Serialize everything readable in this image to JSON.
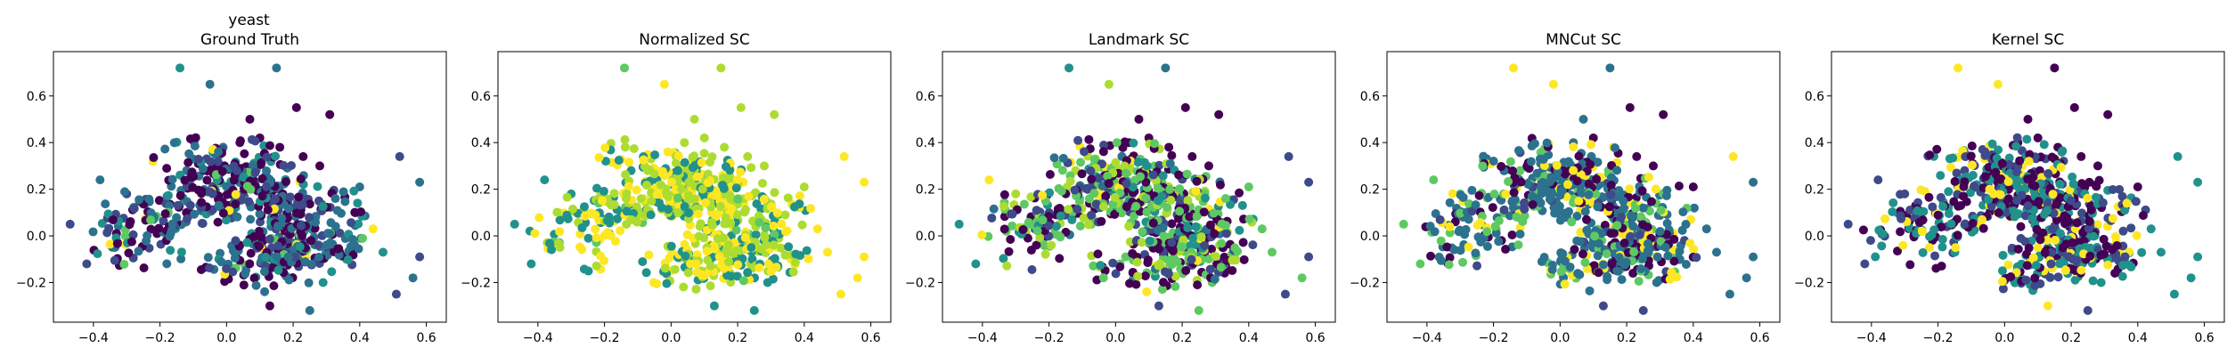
{
  "figure": {
    "dataset_name": "yeast"
  },
  "colors": {
    "viridis": [
      "#440154",
      "#3b528b",
      "#21918c",
      "#5ec962",
      "#fde725"
    ],
    "cluster_order": [
      "#440154",
      "#3e4a89",
      "#2c728e",
      "#21918c",
      "#27ad81",
      "#5ec962",
      "#addc30",
      "#fde725"
    ]
  },
  "chart_data": [
    {
      "type": "scatter",
      "title": "Ground Truth",
      "xlim": [
        -0.52,
        0.66
      ],
      "ylim": [
        -0.37,
        0.79
      ],
      "xticks": [
        -0.4,
        -0.2,
        0.0,
        0.2,
        0.4,
        0.6
      ],
      "yticks": [
        -0.2,
        0.0,
        0.2,
        0.4,
        0.6
      ],
      "xtick_labels": [
        "−0.4",
        "−0.2",
        "0.0",
        "0.2",
        "0.4",
        "0.6"
      ],
      "ytick_labels": [
        "−0.2",
        "0.0",
        "0.2",
        "0.4",
        "0.6"
      ],
      "grid": false,
      "legend": "none",
      "points": [
        {
          "x": -0.14,
          "y": 0.72,
          "c": 3
        },
        {
          "x": -0.05,
          "y": 0.65,
          "c": 2
        },
        {
          "x": 0.15,
          "y": 0.72,
          "c": 2
        },
        {
          "x": 0.07,
          "y": 0.5,
          "c": 0
        },
        {
          "x": 0.21,
          "y": 0.55,
          "c": 0
        },
        {
          "x": 0.31,
          "y": 0.52,
          "c": 0
        },
        {
          "x": 0.52,
          "y": 0.34,
          "c": 1
        },
        {
          "x": 0.58,
          "y": 0.23,
          "c": 2
        },
        {
          "x": -0.47,
          "y": 0.05,
          "c": 1
        },
        {
          "x": 0.51,
          "y": -0.25,
          "c": 1
        },
        {
          "x": 0.56,
          "y": -0.18,
          "c": 2
        },
        {
          "x": 0.25,
          "y": -0.32,
          "c": 2
        },
        {
          "x": 0.13,
          "y": -0.3,
          "c": 0
        },
        {
          "x": 0.44,
          "y": 0.03,
          "c": 7
        },
        {
          "x": 0.58,
          "y": -0.09,
          "c": 1
        },
        {
          "x": 0.4,
          "y": 0.21,
          "c": 2
        },
        {
          "x": 0.04,
          "y": 0.4,
          "c": 0
        },
        {
          "x": 0.1,
          "y": 0.42,
          "c": 0
        },
        {
          "x": 0.16,
          "y": 0.38,
          "c": 0
        },
        {
          "x": 0.23,
          "y": 0.34,
          "c": 0
        },
        {
          "x": 0.28,
          "y": 0.3,
          "c": 0
        },
        {
          "x": -0.06,
          "y": 0.33,
          "c": 1
        },
        {
          "x": -0.12,
          "y": 0.28,
          "c": 2
        },
        {
          "x": 0.32,
          "y": -0.05,
          "c": 5
        },
        {
          "x": 0.29,
          "y": -0.2,
          "c": 3
        },
        {
          "x": -0.42,
          "y": -0.12,
          "c": 1
        },
        {
          "x": -0.38,
          "y": 0.24,
          "c": 2
        },
        {
          "x": 0.36,
          "y": -0.1,
          "c": 3
        },
        {
          "x": 0.47,
          "y": -0.07,
          "c": 3
        },
        {
          "x": -0.3,
          "y": 0.18,
          "c": 1
        }
      ]
    },
    {
      "type": "scatter",
      "title": "Normalized SC",
      "xlim": [
        -0.52,
        0.66
      ],
      "ylim": [
        -0.37,
        0.79
      ],
      "xticks": [
        -0.4,
        -0.2,
        0.0,
        0.2,
        0.4,
        0.6
      ],
      "yticks": [
        -0.2,
        0.0,
        0.2,
        0.4,
        0.6
      ],
      "xtick_labels": [
        "−0.4",
        "−0.2",
        "0.0",
        "0.2",
        "0.4",
        "0.6"
      ],
      "ytick_labels": [
        "−0.2",
        "0.0",
        "0.2",
        "0.4",
        "0.6"
      ],
      "grid": false,
      "legend": "none",
      "points": [
        {
          "x": -0.14,
          "y": 0.72,
          "c": 5
        },
        {
          "x": -0.02,
          "y": 0.65,
          "c": 7
        },
        {
          "x": 0.15,
          "y": 0.72,
          "c": 6
        },
        {
          "x": 0.07,
          "y": 0.5,
          "c": 6
        },
        {
          "x": 0.21,
          "y": 0.55,
          "c": 6
        },
        {
          "x": 0.31,
          "y": 0.52,
          "c": 6
        },
        {
          "x": 0.52,
          "y": 0.34,
          "c": 7
        },
        {
          "x": 0.58,
          "y": 0.23,
          "c": 7
        },
        {
          "x": -0.47,
          "y": 0.05,
          "c": 3
        },
        {
          "x": 0.51,
          "y": -0.25,
          "c": 7
        },
        {
          "x": 0.56,
          "y": -0.18,
          "c": 7
        },
        {
          "x": 0.25,
          "y": -0.32,
          "c": 3
        },
        {
          "x": 0.13,
          "y": -0.3,
          "c": 3
        },
        {
          "x": 0.44,
          "y": 0.03,
          "c": 7
        },
        {
          "x": 0.58,
          "y": -0.09,
          "c": 7
        },
        {
          "x": 0.4,
          "y": 0.21,
          "c": 6
        },
        {
          "x": 0.04,
          "y": 0.4,
          "c": 6
        },
        {
          "x": 0.1,
          "y": 0.42,
          "c": 6
        },
        {
          "x": 0.16,
          "y": 0.38,
          "c": 6
        },
        {
          "x": 0.23,
          "y": 0.34,
          "c": 6
        },
        {
          "x": 0.28,
          "y": 0.3,
          "c": 6
        },
        {
          "x": -0.06,
          "y": 0.33,
          "c": 6
        },
        {
          "x": -0.12,
          "y": 0.28,
          "c": 3
        },
        {
          "x": 0.32,
          "y": -0.05,
          "c": 7
        },
        {
          "x": 0.29,
          "y": -0.2,
          "c": 3
        },
        {
          "x": -0.42,
          "y": -0.12,
          "c": 3
        },
        {
          "x": -0.38,
          "y": 0.24,
          "c": 3
        },
        {
          "x": 0.36,
          "y": -0.1,
          "c": 7
        },
        {
          "x": 0.47,
          "y": -0.07,
          "c": 7
        },
        {
          "x": -0.3,
          "y": 0.18,
          "c": 3
        }
      ]
    },
    {
      "type": "scatter",
      "title": "Landmark SC",
      "xlim": [
        -0.52,
        0.66
      ],
      "ylim": [
        -0.37,
        0.79
      ],
      "xticks": [
        -0.4,
        -0.2,
        0.0,
        0.2,
        0.4,
        0.6
      ],
      "yticks": [
        -0.2,
        0.0,
        0.2,
        0.4,
        0.6
      ],
      "xtick_labels": [
        "−0.4",
        "−0.2",
        "0.0",
        "0.2",
        "0.4",
        "0.6"
      ],
      "ytick_labels": [
        "−0.2",
        "0.0",
        "0.2",
        "0.4",
        "0.6"
      ],
      "grid": false,
      "legend": "none",
      "points": [
        {
          "x": -0.14,
          "y": 0.72,
          "c": 3
        },
        {
          "x": -0.02,
          "y": 0.65,
          "c": 6
        },
        {
          "x": 0.15,
          "y": 0.72,
          "c": 2
        },
        {
          "x": 0.07,
          "y": 0.5,
          "c": 0
        },
        {
          "x": 0.21,
          "y": 0.55,
          "c": 0
        },
        {
          "x": 0.31,
          "y": 0.52,
          "c": 0
        },
        {
          "x": 0.52,
          "y": 0.34,
          "c": 1
        },
        {
          "x": 0.58,
          "y": 0.23,
          "c": 1
        },
        {
          "x": -0.47,
          "y": 0.05,
          "c": 3
        },
        {
          "x": 0.51,
          "y": -0.25,
          "c": 1
        },
        {
          "x": 0.56,
          "y": -0.18,
          "c": 5
        },
        {
          "x": 0.25,
          "y": -0.32,
          "c": 5
        },
        {
          "x": 0.13,
          "y": -0.3,
          "c": 1
        },
        {
          "x": 0.44,
          "y": 0.03,
          "c": 5
        },
        {
          "x": 0.58,
          "y": -0.09,
          "c": 1
        },
        {
          "x": 0.4,
          "y": 0.21,
          "c": 5
        },
        {
          "x": 0.04,
          "y": 0.4,
          "c": 0
        },
        {
          "x": 0.1,
          "y": 0.42,
          "c": 0
        },
        {
          "x": 0.16,
          "y": 0.38,
          "c": 0
        },
        {
          "x": 0.23,
          "y": 0.34,
          "c": 0
        },
        {
          "x": 0.28,
          "y": 0.3,
          "c": 0
        },
        {
          "x": -0.06,
          "y": 0.33,
          "c": 6
        },
        {
          "x": -0.12,
          "y": 0.28,
          "c": 6
        },
        {
          "x": 0.32,
          "y": -0.05,
          "c": 5
        },
        {
          "x": 0.29,
          "y": -0.2,
          "c": 5
        },
        {
          "x": -0.42,
          "y": -0.12,
          "c": 3
        },
        {
          "x": -0.38,
          "y": 0.24,
          "c": 7
        },
        {
          "x": 0.36,
          "y": -0.1,
          "c": 5
        },
        {
          "x": 0.47,
          "y": -0.07,
          "c": 5
        },
        {
          "x": -0.3,
          "y": 0.18,
          "c": 6
        }
      ]
    },
    {
      "type": "scatter",
      "title": "MNCut SC",
      "xlim": [
        -0.52,
        0.66
      ],
      "ylim": [
        -0.37,
        0.79
      ],
      "xticks": [
        -0.4,
        -0.2,
        0.0,
        0.2,
        0.4,
        0.6
      ],
      "yticks": [
        -0.2,
        0.0,
        0.2,
        0.4,
        0.6
      ],
      "xtick_labels": [
        "−0.4",
        "−0.2",
        "0.0",
        "0.2",
        "0.4",
        "0.6"
      ],
      "ytick_labels": [
        "−0.2",
        "0.0",
        "0.2",
        "0.4",
        "0.6"
      ],
      "grid": false,
      "legend": "none",
      "points": [
        {
          "x": -0.14,
          "y": 0.72,
          "c": 7
        },
        {
          "x": -0.02,
          "y": 0.65,
          "c": 7
        },
        {
          "x": 0.15,
          "y": 0.72,
          "c": 2
        },
        {
          "x": 0.07,
          "y": 0.5,
          "c": 2
        },
        {
          "x": 0.21,
          "y": 0.55,
          "c": 0
        },
        {
          "x": 0.31,
          "y": 0.52,
          "c": 0
        },
        {
          "x": 0.52,
          "y": 0.34,
          "c": 7
        },
        {
          "x": 0.58,
          "y": 0.23,
          "c": 2
        },
        {
          "x": -0.47,
          "y": 0.05,
          "c": 5
        },
        {
          "x": 0.51,
          "y": -0.25,
          "c": 2
        },
        {
          "x": 0.56,
          "y": -0.18,
          "c": 2
        },
        {
          "x": 0.25,
          "y": -0.32,
          "c": 1
        },
        {
          "x": 0.13,
          "y": -0.3,
          "c": 1
        },
        {
          "x": 0.44,
          "y": 0.03,
          "c": 2
        },
        {
          "x": 0.58,
          "y": -0.09,
          "c": 2
        },
        {
          "x": 0.4,
          "y": 0.21,
          "c": 0
        },
        {
          "x": 0.04,
          "y": 0.4,
          "c": 2
        },
        {
          "x": 0.1,
          "y": 0.42,
          "c": 0
        },
        {
          "x": 0.16,
          "y": 0.38,
          "c": 7
        },
        {
          "x": 0.23,
          "y": 0.34,
          "c": 0
        },
        {
          "x": 0.28,
          "y": 0.3,
          "c": 0
        },
        {
          "x": -0.06,
          "y": 0.33,
          "c": 2
        },
        {
          "x": -0.12,
          "y": 0.28,
          "c": 5
        },
        {
          "x": 0.32,
          "y": -0.05,
          "c": 2
        },
        {
          "x": 0.29,
          "y": -0.2,
          "c": 2
        },
        {
          "x": -0.42,
          "y": -0.12,
          "c": 5
        },
        {
          "x": -0.38,
          "y": 0.24,
          "c": 5
        },
        {
          "x": 0.36,
          "y": -0.1,
          "c": 2
        },
        {
          "x": 0.47,
          "y": -0.07,
          "c": 2
        },
        {
          "x": -0.3,
          "y": 0.18,
          "c": 5
        }
      ]
    },
    {
      "type": "scatter",
      "title": "Kernel SC",
      "xlim": [
        -0.52,
        0.66
      ],
      "ylim": [
        -0.37,
        0.79
      ],
      "xticks": [
        -0.4,
        -0.2,
        0.0,
        0.2,
        0.4,
        0.6
      ],
      "yticks": [
        -0.2,
        0.0,
        0.2,
        0.4,
        0.6
      ],
      "xtick_labels": [
        "−0.4",
        "−0.2",
        "0.0",
        "0.2",
        "0.4",
        "0.6"
      ],
      "ytick_labels": [
        "−0.2",
        "0.0",
        "0.2",
        "0.4",
        "0.6"
      ],
      "grid": false,
      "legend": "none",
      "points": [
        {
          "x": -0.14,
          "y": 0.72,
          "c": 7
        },
        {
          "x": -0.02,
          "y": 0.65,
          "c": 7
        },
        {
          "x": 0.15,
          "y": 0.72,
          "c": 0
        },
        {
          "x": 0.07,
          "y": 0.5,
          "c": 0
        },
        {
          "x": 0.21,
          "y": 0.55,
          "c": 0
        },
        {
          "x": 0.31,
          "y": 0.52,
          "c": 0
        },
        {
          "x": 0.52,
          "y": 0.34,
          "c": 3
        },
        {
          "x": 0.58,
          "y": 0.23,
          "c": 3
        },
        {
          "x": -0.47,
          "y": 0.05,
          "c": 1
        },
        {
          "x": 0.51,
          "y": -0.25,
          "c": 3
        },
        {
          "x": 0.56,
          "y": -0.18,
          "c": 3
        },
        {
          "x": 0.25,
          "y": -0.32,
          "c": 1
        },
        {
          "x": 0.13,
          "y": -0.3,
          "c": 7
        },
        {
          "x": 0.44,
          "y": 0.03,
          "c": 3
        },
        {
          "x": 0.58,
          "y": -0.09,
          "c": 3
        },
        {
          "x": 0.4,
          "y": 0.21,
          "c": 0
        },
        {
          "x": 0.04,
          "y": 0.4,
          "c": 0
        },
        {
          "x": 0.1,
          "y": 0.42,
          "c": 0
        },
        {
          "x": 0.16,
          "y": 0.38,
          "c": 0
        },
        {
          "x": 0.23,
          "y": 0.34,
          "c": 0
        },
        {
          "x": 0.28,
          "y": 0.3,
          "c": 0
        },
        {
          "x": -0.06,
          "y": 0.33,
          "c": 7
        },
        {
          "x": -0.12,
          "y": 0.28,
          "c": 1
        },
        {
          "x": 0.32,
          "y": -0.05,
          "c": 3
        },
        {
          "x": 0.29,
          "y": -0.2,
          "c": 3
        },
        {
          "x": -0.42,
          "y": -0.12,
          "c": 1
        },
        {
          "x": -0.38,
          "y": 0.24,
          "c": 1
        },
        {
          "x": 0.36,
          "y": -0.1,
          "c": 3
        },
        {
          "x": 0.47,
          "y": -0.07,
          "c": 3
        },
        {
          "x": -0.3,
          "y": 0.18,
          "c": 1
        }
      ]
    }
  ]
}
